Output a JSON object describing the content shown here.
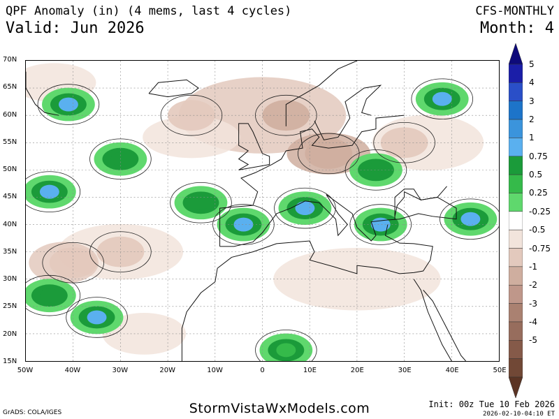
{
  "header": {
    "title_left": "QPF Anomaly (in) (4 mems, last 4 cycles)",
    "valid": "Valid: Jun 2026",
    "title_right": "CFS-MONTHLY",
    "month": "Month: 4"
  },
  "map": {
    "lat_labels": [
      "70N",
      "65N",
      "60N",
      "55N",
      "50N",
      "45N",
      "40N",
      "35N",
      "30N",
      "25N",
      "20N",
      "15N"
    ],
    "lon_labels": [
      "50W",
      "40W",
      "30W",
      "20W",
      "10W",
      "0",
      "10E",
      "20E",
      "30E",
      "40E",
      "50E"
    ],
    "region": {
      "lon_range": [
        -50,
        50
      ],
      "lat_range": [
        15,
        70
      ]
    },
    "features": [
      {
        "name": "wet-greenland-sea",
        "lon": -41,
        "lat": 62,
        "level": 1
      },
      {
        "name": "wet-north-atlantic-west",
        "lon": -45,
        "lat": 46,
        "level": 1.5
      },
      {
        "name": "wet-north-atlantic-mid",
        "lon": -30,
        "lat": 52,
        "level": 0.75
      },
      {
        "name": "wet-azores",
        "lon": -13,
        "lat": 44,
        "level": 0.75
      },
      {
        "name": "wet-iberia",
        "lon": -4,
        "lat": 40,
        "level": 1
      },
      {
        "name": "wet-alps",
        "lon": 9,
        "lat": 43,
        "level": 1
      },
      {
        "name": "wet-balkans",
        "lon": 25,
        "lat": 40,
        "level": 1
      },
      {
        "name": "wet-caucasus",
        "lon": 44,
        "lat": 41,
        "level": 1
      },
      {
        "name": "wet-russia-north",
        "lon": 38,
        "lat": 63,
        "level": 1
      },
      {
        "name": "wet-eastern-europe",
        "lon": 24,
        "lat": 50,
        "level": 0.75
      },
      {
        "name": "wet-cape-verde",
        "lon": -35,
        "lat": 23,
        "level": 1
      },
      {
        "name": "wet-west-atlantic-south",
        "lon": -45,
        "lat": 27,
        "level": 0.75
      },
      {
        "name": "wet-sahel",
        "lon": 5,
        "lat": 17,
        "level": 0.5
      },
      {
        "name": "dry-scandinavia",
        "lon": 5,
        "lat": 60,
        "level": -0.75
      },
      {
        "name": "dry-central-europe",
        "lon": 14,
        "lat": 53,
        "level": -0.75
      },
      {
        "name": "dry-north-atlantic",
        "lon": -15,
        "lat": 60,
        "level": -0.5
      },
      {
        "name": "dry-atlantic-south",
        "lon": -30,
        "lat": 35,
        "level": -0.5
      },
      {
        "name": "dry-eastern-europe",
        "lon": 30,
        "lat": 55,
        "level": -0.5
      },
      {
        "name": "dry-atlantic-tropics",
        "lon": -40,
        "lat": 33,
        "level": -0.5
      }
    ]
  },
  "colorbar": {
    "levels": [
      "5",
      "4",
      "3",
      "2",
      "1",
      "0.75",
      "0.5",
      "0.25",
      "-0.25",
      "-0.5",
      "-0.75",
      "-1",
      "-2",
      "-3",
      "-4",
      "-5"
    ],
    "colors": {
      "wet": [
        "#1b1ea8",
        "#2a4fc8",
        "#1d74c9",
        "#3b94dc",
        "#5ab0ef",
        "#1b9b3a",
        "#35ba4a",
        "#5fd86d"
      ],
      "neutral": "#ffffff",
      "dry": [
        "#f2e4dc",
        "#e3c9bd",
        "#cfae9f",
        "#bf978a",
        "#aa8171",
        "#976d5d",
        "#855a49",
        "#714836"
      ]
    }
  },
  "footer": {
    "credit": "GrADS: COLA/IGES",
    "site": "StormVistaWxModels.com",
    "init": "Init: 00z Tue 10 Feb 2026",
    "stamp": "2026-02-10-04:10 ET"
  }
}
